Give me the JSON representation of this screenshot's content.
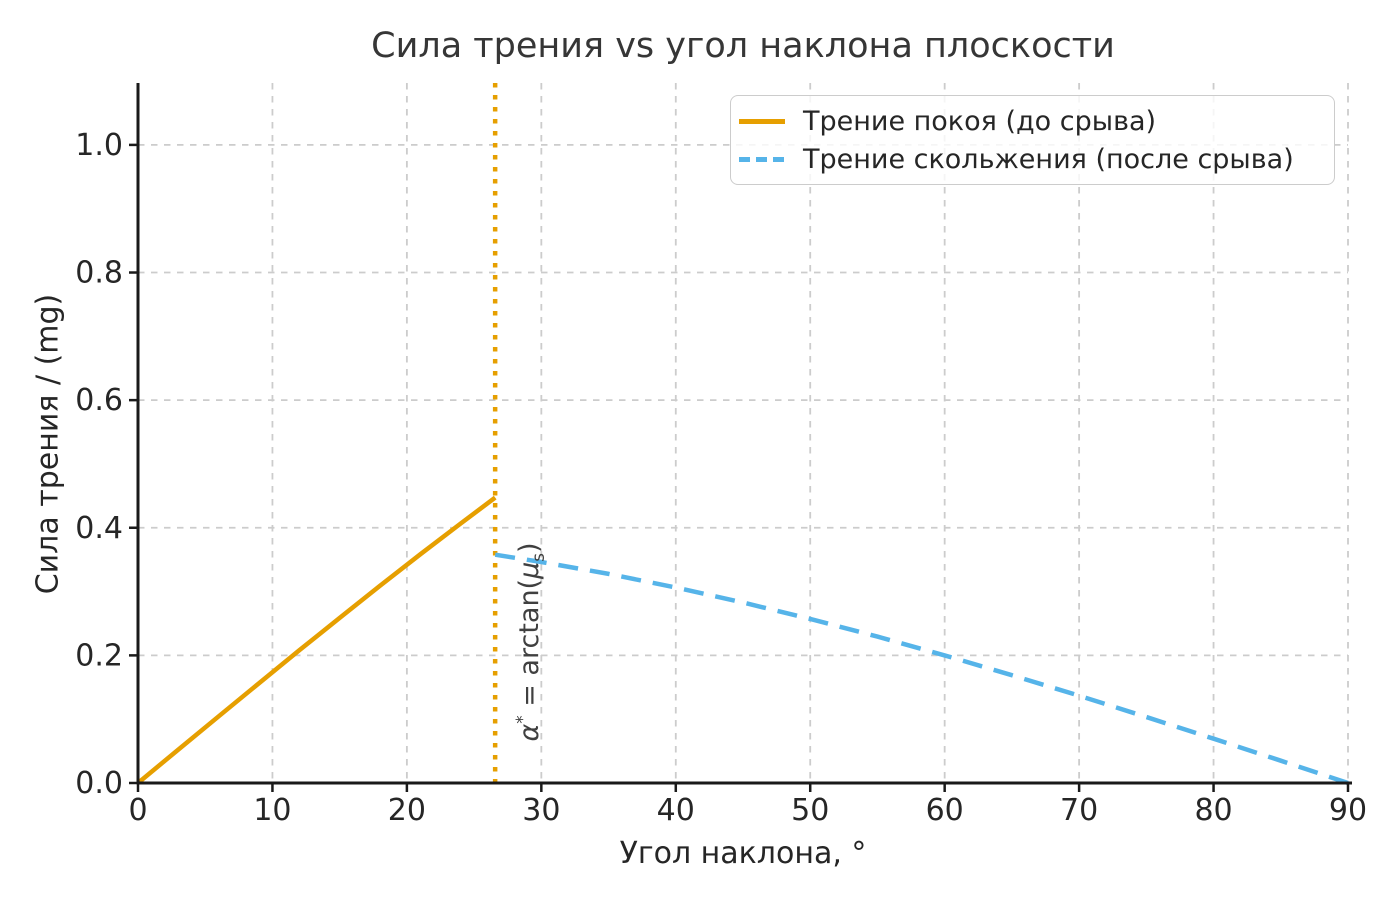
{
  "chart_data": {
    "type": "line",
    "title": "Сила трения vs угол наклона плоскости",
    "xlabel": "Угол наклона, °",
    "ylabel": "Сила трения / (mg)",
    "xlim": [
      0,
      90
    ],
    "ylim": [
      0,
      1.097
    ],
    "xticks": [
      0,
      10,
      20,
      30,
      40,
      50,
      60,
      70,
      80,
      90
    ],
    "xtick_labels": [
      "0",
      "10",
      "20",
      "30",
      "40",
      "50",
      "60",
      "70",
      "80",
      "90"
    ],
    "yticks": [
      0,
      0.2,
      0.4,
      0.6,
      0.8,
      1.0
    ],
    "ytick_labels": [
      "0.0",
      "0.2",
      "0.4",
      "0.6",
      "0.8",
      "1.0"
    ],
    "grid": true,
    "grid_color": "#cccccc",
    "axis_color": "#1a1a1a",
    "tick_text_color": "#262626",
    "legend_position": "upper right",
    "series": [
      {
        "name": "Трение покоя (до срыва)",
        "color": "#E69F00",
        "style": "solid",
        "x": [
          0,
          3,
          6,
          9,
          12,
          15,
          18,
          21,
          24,
          26.565
        ],
        "y": [
          0,
          0.0523,
          0.1045,
          0.1564,
          0.2079,
          0.2588,
          0.309,
          0.3584,
          0.4067,
          0.4472
        ]
      },
      {
        "name": "Трение скольжения (после срыва)",
        "color": "#56B4E9",
        "style": "dashed",
        "x": [
          26.565,
          30,
          35,
          40,
          45,
          50,
          55,
          60,
          65,
          70,
          75,
          80,
          85,
          90
        ],
        "y": [
          0.3578,
          0.3464,
          0.3277,
          0.3064,
          0.2828,
          0.2571,
          0.2294,
          0.2,
          0.169,
          0.1368,
          0.1035,
          0.0695,
          0.0349,
          0
        ]
      }
    ],
    "vline": {
      "x": 26.565,
      "color": "#E69F00",
      "style": "dotted"
    },
    "annotation": {
      "alpha": "α",
      "sup": "*",
      "mid": " = arctan(",
      "mu": "μ",
      "sub": "s",
      "close": ")"
    }
  }
}
